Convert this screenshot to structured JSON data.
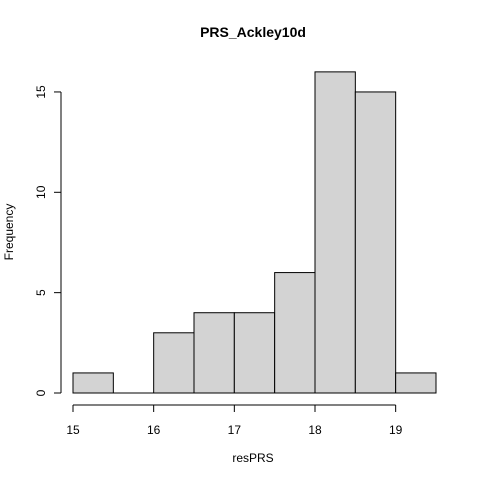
{
  "chart_data": {
    "type": "bar",
    "title": "PRS_Ackley10d",
    "xlabel": "resPRS",
    "ylabel": "Frequency",
    "bins": [
      {
        "from": 15.0,
        "to": 15.5,
        "count": 1
      },
      {
        "from": 15.5,
        "to": 16.0,
        "count": 0
      },
      {
        "from": 16.0,
        "to": 16.5,
        "count": 3
      },
      {
        "from": 16.5,
        "to": 17.0,
        "count": 4
      },
      {
        "from": 17.0,
        "to": 17.5,
        "count": 4
      },
      {
        "from": 17.5,
        "to": 18.0,
        "count": 6
      },
      {
        "from": 18.0,
        "to": 18.5,
        "count": 16
      },
      {
        "from": 18.5,
        "to": 19.0,
        "count": 15
      },
      {
        "from": 19.0,
        "to": 19.5,
        "count": 1
      }
    ],
    "xlim": [
      15,
      19.5
    ],
    "ylim": [
      0,
      16
    ],
    "xticks": [
      15,
      16,
      17,
      18,
      19
    ],
    "yticks": [
      0,
      5,
      10,
      15
    ],
    "grid": false,
    "bar_color": "#d3d3d3"
  }
}
